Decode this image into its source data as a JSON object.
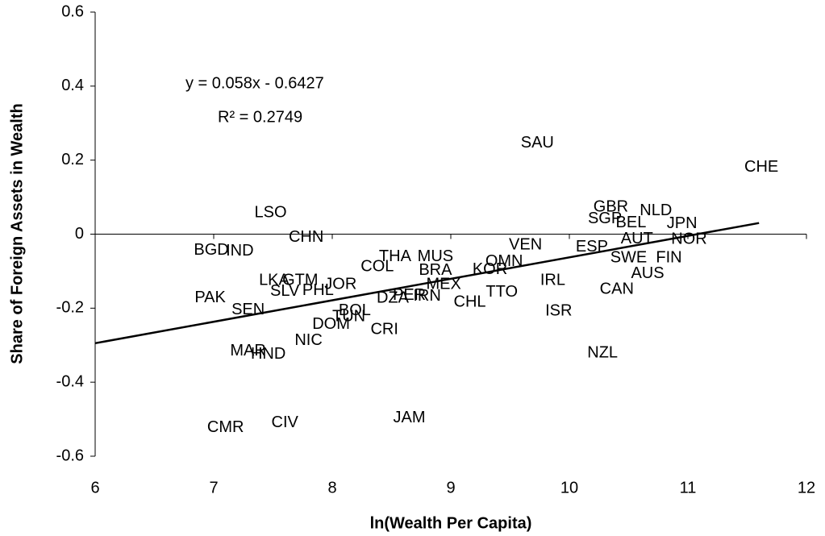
{
  "chart_data": {
    "type": "scatter",
    "x_label": "ln(Wealth Per Capita)",
    "y_label": "Share of Foreign Assets in Wealth",
    "annotations": [
      "y = 0.058x - 0.6427",
      "R² = 0.2749"
    ],
    "labels": [
      "SAU",
      "CHE",
      "LSO",
      "CHN",
      "BGD",
      "IND",
      "GBR",
      "NLD",
      "SGP",
      "BEL",
      "JPN",
      "AUT",
      "NOR",
      "ESP",
      "VEN",
      "SWE",
      "FIN",
      "AUS",
      "CAN",
      "ISR",
      "NZL",
      "IRL",
      "OMN",
      "KOR",
      "TTO",
      "CHL",
      "JAM",
      "CIV",
      "CMR",
      "MAR",
      "HND",
      "NIC",
      "DOM",
      "TUN",
      "BOL",
      "CRI",
      "DZA",
      "IRN",
      "PAK",
      "SEN",
      "SLV",
      "LKA",
      "GTM",
      "JOR",
      "PHL",
      "COL",
      "THA",
      "MUS",
      "MEX",
      "PER",
      "BRA"
    ],
    "x": [
      9.73,
      11.62,
      7.48,
      7.78,
      6.98,
      7.22,
      10.35,
      10.73,
      10.3,
      10.52,
      10.95,
      10.57,
      11.01,
      10.19,
      9.63,
      10.5,
      10.84,
      10.66,
      10.4,
      9.91,
      10.28,
      9.86,
      9.45,
      9.33,
      9.43,
      9.16,
      8.65,
      7.6,
      7.1,
      7.29,
      7.46,
      7.8,
      7.99,
      8.14,
      8.19,
      8.44,
      8.51,
      8.8,
      6.97,
      7.29,
      7.6,
      7.51,
      7.73,
      8.07,
      7.88,
      8.38,
      8.53,
      8.87,
      8.94,
      8.65,
      8.87
    ],
    "y": [
      0.246,
      0.18,
      0.057,
      -0.009,
      -0.044,
      -0.046,
      0.072,
      0.063,
      0.041,
      0.03,
      0.028,
      -0.013,
      -0.015,
      -0.035,
      -0.03,
      -0.065,
      -0.065,
      -0.107,
      -0.15,
      -0.209,
      -0.322,
      -0.126,
      -0.074,
      -0.096,
      -0.157,
      -0.185,
      -0.497,
      -0.51,
      -0.523,
      -0.316,
      -0.325,
      -0.288,
      -0.244,
      -0.224,
      -0.207,
      -0.259,
      -0.174,
      -0.168,
      -0.172,
      -0.205,
      -0.155,
      -0.126,
      -0.126,
      -0.137,
      -0.153,
      -0.089,
      -0.061,
      -0.061,
      -0.137,
      -0.166,
      -0.098
    ],
    "trendline": {
      "slope": 0.058,
      "intercept": -0.6427,
      "x": [
        6,
        11.6
      ]
    },
    "xlim": [
      6,
      12
    ],
    "xticks": [
      6,
      7,
      8,
      9,
      10,
      11,
      12
    ],
    "ylim": [
      -0.6,
      0.6
    ],
    "yticks": [
      -0.6,
      -0.4,
      -0.2,
      0,
      0.2,
      0.4,
      0.6
    ]
  }
}
